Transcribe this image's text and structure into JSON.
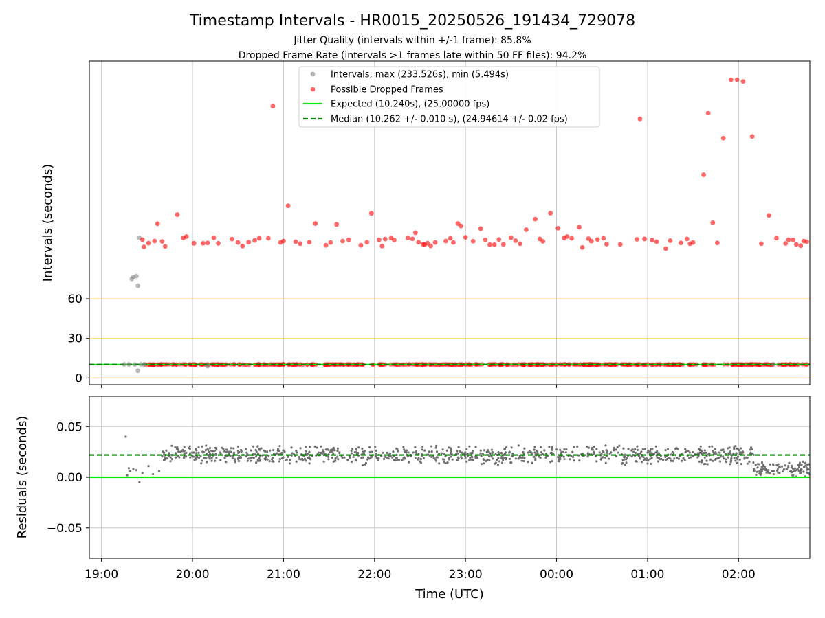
{
  "title": "Timestamp Intervals - HR0015_20250526_191434_729078",
  "subtitle_1": "Jitter Quality (intervals within +/-1 frame): 85.8%",
  "subtitle_2": "Dropped Frame Rate (intervals >1 frames late within 50 FF files): 94.2%",
  "colors": {
    "intervals": "#7f7f7f",
    "dropped": "#ff0000",
    "expected": "#00ee00",
    "median": "#007f00",
    "threshold": "#ffc000",
    "grid": "#c8c8c8",
    "residuals": "#707070"
  },
  "chart_data": [
    {
      "type": "scatter",
      "name": "intervals",
      "ylabel": "Intervals (seconds)",
      "yticks": [
        0,
        30,
        60
      ],
      "ylim": [
        -5,
        240
      ],
      "xlim": [
        "18:52",
        "02:47"
      ],
      "threshold_lines": [
        0,
        30,
        60
      ],
      "legend_position": "top-center",
      "legend": [
        "Intervals, max (233.526s), min (5.494s)",
        "Possible Dropped Frames",
        "Expected (10.240s), (25.00000 fps)",
        "Median (10.262 +/- 0.010 s), (24.94614 +/- 0.02 fps)"
      ],
      "expected": 10.24,
      "median": 10.262,
      "series": [
        {
          "name": "Intervals, max (233.526s), min (5.494s)",
          "points": [
            [
              "19:20",
              75.0
            ],
            [
              "19:21",
              76.5
            ],
            [
              "19:23",
              77.1
            ],
            [
              "19:24",
              69.8
            ],
            [
              "19:25",
              106.2
            ],
            [
              "19:24",
              5.5
            ],
            [
              "19:15",
              10.3
            ],
            [
              "19:18",
              10.3
            ],
            [
              "19:22",
              10.2
            ],
            [
              "19:26",
              10.3
            ],
            [
              "19:28",
              10.3
            ],
            [
              "20:10",
              9.0
            ],
            [
              "02:23",
              10.3
            ]
          ]
        },
        {
          "name": "Possible Dropped Frames",
          "points": [
            [
              "19:27",
              104.8
            ],
            [
              "19:28",
              99.3
            ],
            [
              "19:31",
              102.1
            ],
            [
              "19:35",
              103.7
            ],
            [
              "19:37",
              116.8
            ],
            [
              "19:40",
              103.4
            ],
            [
              "19:42",
              99.7
            ],
            [
              "19:50",
              123.7
            ],
            [
              "19:54",
              106.1
            ],
            [
              "19:56",
              107.1
            ],
            [
              "20:01",
              102.0
            ],
            [
              "20:07",
              102.0
            ],
            [
              "20:10",
              102.3
            ],
            [
              "20:14",
              106.2
            ],
            [
              "20:17",
              102.0
            ],
            [
              "20:26",
              105.2
            ],
            [
              "20:30",
              102.6
            ],
            [
              "20:33",
              99.9
            ],
            [
              "20:37",
              102.8
            ],
            [
              "20:41",
              104.2
            ],
            [
              "20:44",
              105.8
            ],
            [
              "20:50",
              105.8
            ],
            [
              "20:53",
              205.8
            ],
            [
              "20:58",
              102.6
            ],
            [
              "21:00",
              103.7
            ],
            [
              "21:03",
              130.4
            ],
            [
              "21:08",
              103.2
            ],
            [
              "21:11",
              101.8
            ],
            [
              "21:17",
              102.8
            ],
            [
              "21:21",
              116.9
            ],
            [
              "21:28",
              100.5
            ],
            [
              "21:31",
              102.6
            ],
            [
              "21:35",
              116.3
            ],
            [
              "21:39",
              103.7
            ],
            [
              "21:43",
              104.7
            ],
            [
              "21:51",
              100.5
            ],
            [
              "21:55",
              102.8
            ],
            [
              "21:58",
              124.7
            ],
            [
              "22:03",
              104.7
            ],
            [
              "22:05",
              99.9
            ],
            [
              "22:07",
              105.2
            ],
            [
              "22:11",
              106.0
            ],
            [
              "22:13",
              104.5
            ],
            [
              "22:22",
              106.0
            ],
            [
              "22:25",
              105.4
            ],
            [
              "22:27",
              110.0
            ],
            [
              "22:29",
              102.8
            ],
            [
              "22:32",
              101.3
            ],
            [
              "22:33",
              100.9
            ],
            [
              "22:35",
              102.1
            ],
            [
              "22:37",
              100.0
            ],
            [
              "22:40",
              102.6
            ],
            [
              "22:47",
              103.7
            ],
            [
              "22:50",
              105.8
            ],
            [
              "22:52",
              102.6
            ],
            [
              "22:55",
              116.9
            ],
            [
              "22:57",
              115.1
            ],
            [
              "23:00",
              106.5
            ],
            [
              "23:05",
              103.6
            ],
            [
              "23:10",
              113.1
            ],
            [
              "23:13",
              104.7
            ],
            [
              "23:16",
              101.0
            ],
            [
              "23:19",
              101.0
            ],
            [
              "23:22",
              104.9
            ],
            [
              "23:25",
              101.2
            ],
            [
              "23:30",
              106.2
            ],
            [
              "23:33",
              104.0
            ],
            [
              "23:36",
              101.7
            ],
            [
              "23:40",
              112.3
            ],
            [
              "23:46",
              120.3
            ],
            [
              "23:49",
              105.3
            ],
            [
              "23:51",
              103.5
            ],
            [
              "23:56",
              124.8
            ],
            [
              "00:01",
              113.4
            ],
            [
              "00:05",
              106.0
            ],
            [
              "00:07",
              107.1
            ],
            [
              "00:10",
              105.8
            ],
            [
              "00:15",
              114.2
            ],
            [
              "00:17",
              98.9
            ],
            [
              "00:21",
              105.5
            ],
            [
              "00:23",
              103.6
            ],
            [
              "00:27",
              104.9
            ],
            [
              "00:31",
              105.8
            ],
            [
              "00:33",
              101.4
            ],
            [
              "00:42",
              101.2
            ],
            [
              "00:53",
              105.0
            ],
            [
              "00:55",
              196.2
            ],
            [
              "00:58",
              105.3
            ],
            [
              "01:03",
              104.5
            ],
            [
              "01:06",
              103.2
            ],
            [
              "01:12",
              98.0
            ],
            [
              "01:15",
              104.0
            ],
            [
              "01:22",
              102.3
            ],
            [
              "01:26",
              105.3
            ],
            [
              "01:28",
              101.7
            ],
            [
              "01:30",
              102.6
            ],
            [
              "01:37",
              153.9
            ],
            [
              "01:40",
              200.6
            ],
            [
              "01:43",
              117.6
            ],
            [
              "01:46",
              102.3
            ],
            [
              "01:50",
              181.6
            ],
            [
              "01:55",
              225.9
            ],
            [
              "01:59",
              225.9
            ],
            [
              "02:03",
              224.6
            ],
            [
              "02:09",
              182.9
            ],
            [
              "02:15",
              101.7
            ],
            [
              "02:20",
              123.1
            ],
            [
              "02:25",
              105.9
            ],
            [
              "02:31",
              101.9
            ],
            [
              "02:33",
              104.7
            ],
            [
              "02:36",
              104.7
            ],
            [
              "02:38",
              101.2
            ],
            [
              "02:41",
              100.2
            ],
            [
              "02:43",
              103.7
            ],
            [
              "02:45",
              103.2
            ]
          ]
        }
      ]
    },
    {
      "type": "scatter",
      "name": "residuals",
      "ylabel": "Residuals (seconds)",
      "xlabel": "Time (UTC)",
      "xticks": [
        "19:00",
        "20:00",
        "21:00",
        "22:00",
        "23:00",
        "00:00",
        "01:00",
        "02:00"
      ],
      "xlim": [
        "18:52",
        "02:47"
      ],
      "yticks": [
        -0.05,
        0.0,
        0.05
      ],
      "ytick_labels": [
        "−0.05",
        "0.00",
        "0.05"
      ],
      "ylim": [
        -0.08,
        0.08
      ],
      "expected_line": 0.0,
      "median_line": 0.022,
      "series": [
        {
          "name": "residuals",
          "points": [
            [
              "19:16",
              0.04
            ],
            [
              "19:17",
              0.002
            ],
            [
              "19:18",
              0.009
            ],
            [
              "19:19",
              0.006
            ],
            [
              "19:21",
              0.008
            ],
            [
              "19:23",
              0.007
            ],
            [
              "19:25",
              -0.005
            ],
            [
              "19:27",
              0.004
            ],
            [
              "19:31",
              0.011
            ],
            [
              "19:34",
              0.003
            ],
            [
              "19:38",
              0.006
            ]
          ],
          "dense_segments": [
            {
              "from": "19:40",
              "to": "02:10",
              "mean": 0.022,
              "spread": 0.008,
              "count": 950
            },
            {
              "from": "02:10",
              "to": "02:47",
              "mean": 0.008,
              "spread": 0.006,
              "count": 110
            }
          ]
        }
      ]
    }
  ]
}
